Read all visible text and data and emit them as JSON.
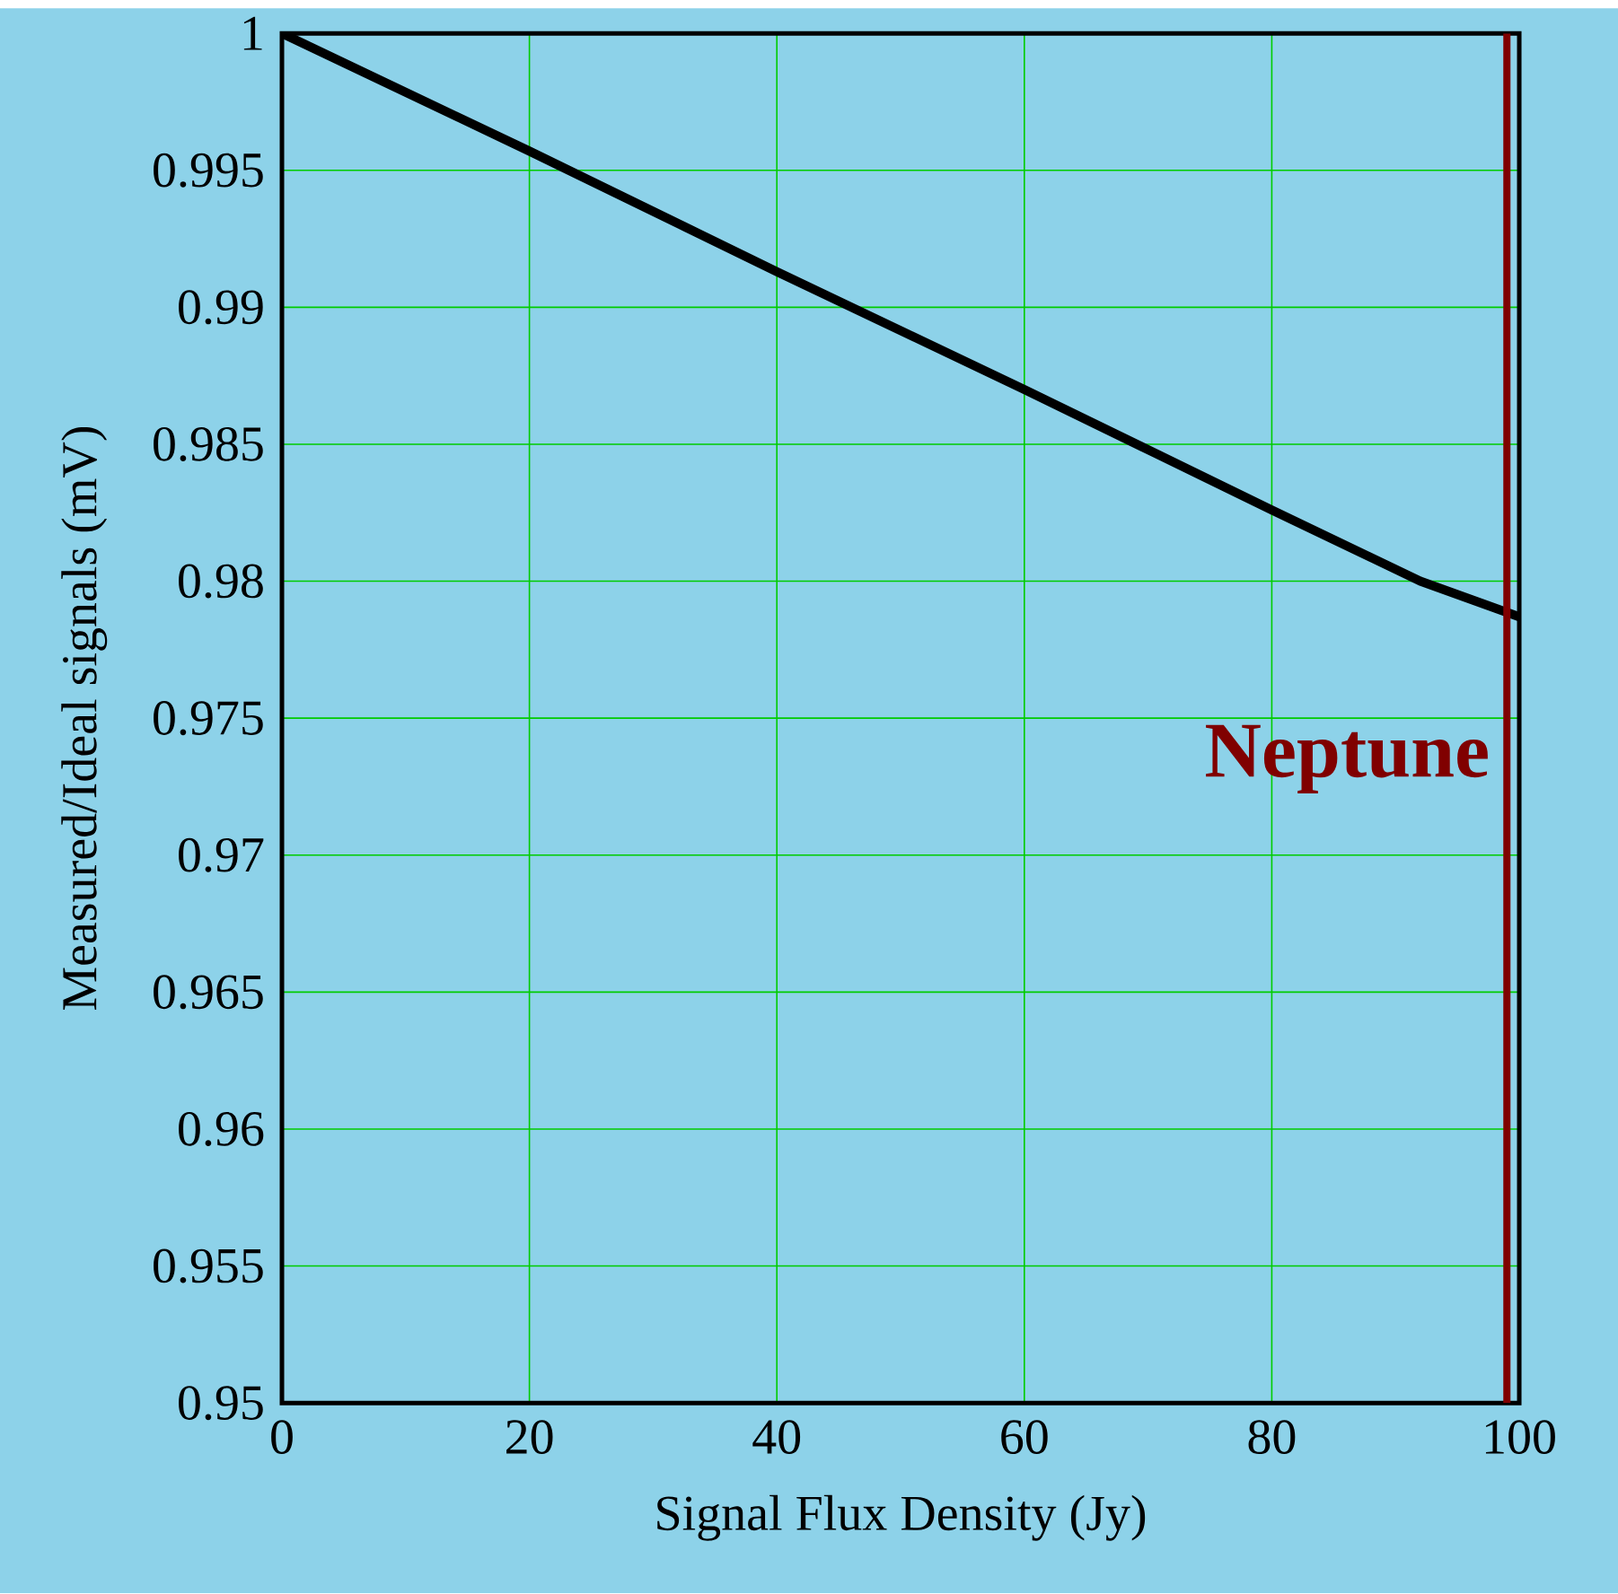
{
  "chart_data": {
    "type": "line",
    "xlabel": "Signal Flux Density  (Jy)",
    "ylabel": "Measured/Ideal signals (mV)",
    "x": [
      0,
      20,
      40,
      60,
      80,
      92,
      100
    ],
    "series": [
      {
        "color": "#000000",
        "values": [
          1,
          0.9957,
          0.9913,
          0.987,
          0.9826,
          0.98,
          0.9787
        ]
      }
    ],
    "xlim": [
      0,
      100
    ],
    "ylim": [
      0.95,
      1
    ],
    "xticks": [
      0,
      20,
      40,
      60,
      80,
      100
    ],
    "yticks": [
      0.95,
      0.955,
      0.96,
      0.965,
      0.97,
      0.975,
      0.98,
      0.985,
      0.99,
      0.995,
      1
    ],
    "grid": true,
    "marker": "none",
    "line_style": "solid",
    "ref_lines": [
      {
        "axis": "x",
        "value": 99,
        "label": "Neptune",
        "color": "#800000"
      }
    ]
  }
}
